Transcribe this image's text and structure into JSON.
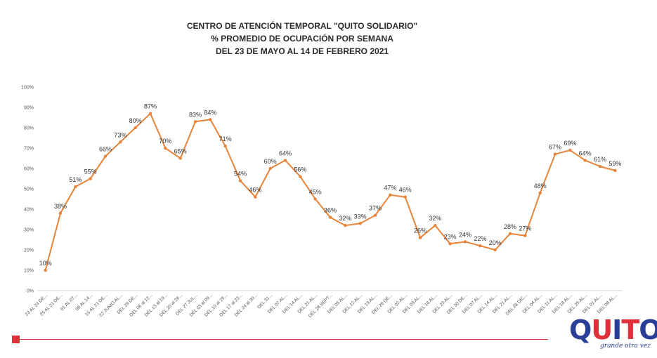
{
  "title": {
    "line1": "CENTRO DE ATENCIÓN TEMPORAL \"QUITO SOLIDARIO\"",
    "line2": "%  PROMEDIO DE OCUPACIÓN POR SEMANA",
    "line3": "DEL 23 DE MAYO AL 14 DE FEBRERO 2021"
  },
  "logo": {
    "q": "Q",
    "u": "U",
    "i": "I",
    "t": "T",
    "o": "O",
    "tagline": "grande otra vez"
  },
  "colors": {
    "line": "#e8843a",
    "accent": "#e0303a",
    "brand_blue": "#2a3f97"
  },
  "chart_data": {
    "type": "line",
    "title": "",
    "xlabel": "",
    "ylabel": "",
    "ylim": [
      0,
      100
    ],
    "y_ticks": [
      "0%",
      "10%",
      "20%",
      "30%",
      "40%",
      "50%",
      "60%",
      "70%",
      "80%",
      "90%",
      "100%"
    ],
    "grid": false,
    "legend": "none",
    "categories": [
      "23 AL 24 DE...",
      "25 AL 31 DE...",
      "01 AL 07...",
      "08 AL 14...",
      "15 AL 21 DE...",
      "22 JUNIO AL...",
      "DEL 29 DE...",
      "DEL 06 al 12...",
      "DEL 13 al 19...",
      "DEL 20 al 26...",
      "DEL 27 JUL...",
      "DEL 03 al 09...",
      "DEL 10 al 16...",
      "DEL 17 al 23...",
      "DEL 24 al 30...",
      "DEL 31...",
      "DEL 07 AL...",
      "DEL 14 AL...",
      "DEL 21 AL...",
      "DEL 28 SEPT...",
      "DEL 05 AL...",
      "DEL 12 AL...",
      "DEL 19 AL...",
      "DEL 26 DE...",
      "DEL 02 AL...",
      "DEL 09 AL...",
      "DEL 16 AL...",
      "DEL 23 AL...",
      "DEL 30 DE...",
      "DEL 07 AL...",
      "DEL 14 AL...",
      "DEL 21 AL...",
      "DEL 28 DIC...",
      "DEL 04 AL...",
      "DEL 11 AL...",
      "DEL 18 AL...",
      "DEL 25 AL...",
      "DEL 01 AL...",
      "DEL 08 AL..."
    ],
    "series": [
      {
        "values": [
          10,
          38,
          51,
          55,
          66,
          73,
          80,
          87,
          70,
          65,
          83,
          84,
          71,
          54,
          46,
          60,
          64,
          56,
          45,
          36,
          32,
          33,
          37,
          47,
          46,
          26,
          32,
          23,
          24,
          22,
          20,
          28,
          27,
          48,
          67,
          69,
          64,
          61,
          59
        ],
        "labels": [
          "10%",
          "38%",
          "51%",
          "55%",
          "66%",
          "73%",
          "80%",
          "87%",
          "70%",
          "65%",
          "83%",
          "84%",
          "71%",
          "54%",
          "46%",
          "60%",
          "64%",
          "56%",
          "45%",
          "36%",
          "32%",
          "33%",
          "37%",
          "47%",
          "46%",
          "26%",
          "32%",
          "23%",
          "24%",
          "22%",
          "20%",
          "28%",
          "27%",
          "48%",
          "67%",
          "69%",
          "64%",
          "61%",
          "59%"
        ]
      }
    ]
  }
}
